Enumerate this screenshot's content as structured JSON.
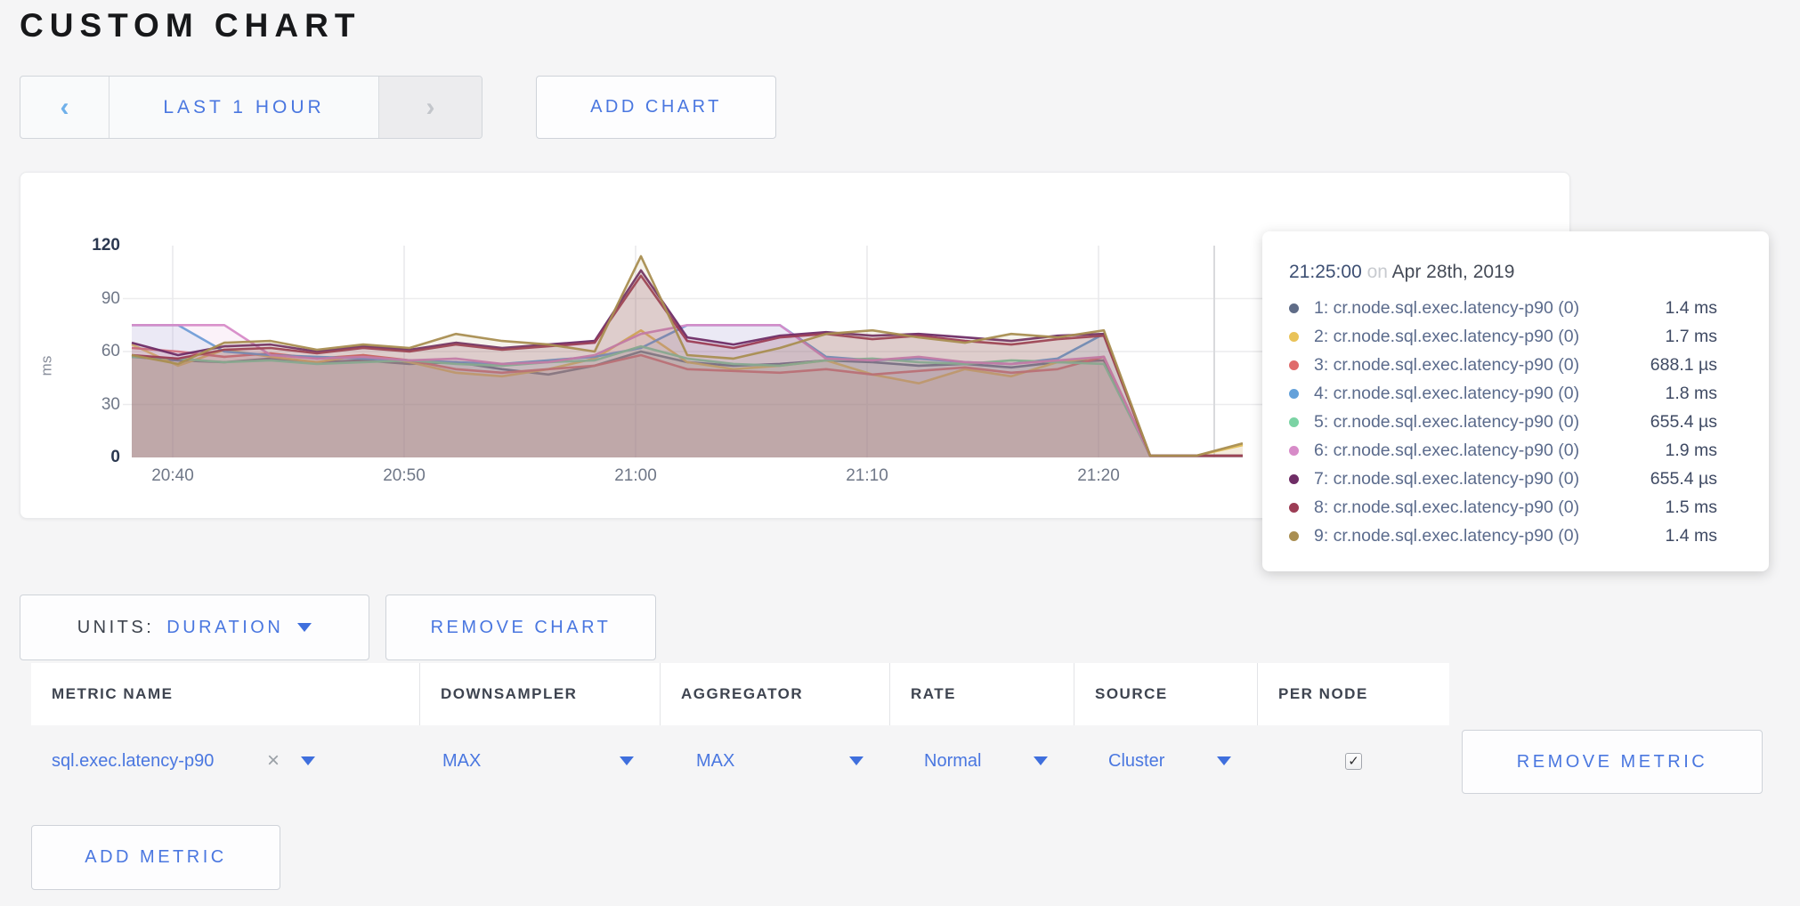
{
  "title": "CUSTOM CHART",
  "colors": {
    "accent": "#4a77e0",
    "page_bg": "#f5f5f6"
  },
  "time_nav": {
    "prev": "‹",
    "label": "LAST 1 HOUR",
    "next": "›"
  },
  "buttons": {
    "add_chart": "ADD CHART",
    "remove_chart": "REMOVE CHART",
    "add_metric": "ADD METRIC",
    "remove_metric": "REMOVE METRIC"
  },
  "units_control": {
    "label": "UNITS:",
    "value": "DURATION"
  },
  "chart_data": {
    "type": "area",
    "title": "",
    "xlabel": "",
    "ylabel": "ms",
    "ylim": [
      0,
      120
    ],
    "yticks": [
      0,
      30,
      60,
      90,
      120
    ],
    "xticks": [
      "20:40",
      "20:50",
      "21:00",
      "21:10",
      "21:20"
    ],
    "grid": true,
    "legend_position": "tooltip",
    "hover_guideline_time": "21:25",
    "x": [
      "20:38",
      "20:40",
      "20:42",
      "20:44",
      "20:46",
      "20:48",
      "20:50",
      "20:52",
      "20:54",
      "20:56",
      "20:58",
      "21:00",
      "21:02",
      "21:04",
      "21:06",
      "21:08",
      "21:10",
      "21:12",
      "21:14",
      "21:16",
      "21:18",
      "21:20",
      "21:22",
      "21:24",
      "21:26"
    ],
    "series": [
      {
        "name": "1: cr.node.sql.exec.latency-p90 (0)",
        "color": "#5F6C87",
        "values": [
          57,
          55,
          54,
          56,
          54,
          55,
          53,
          54,
          50,
          47,
          52,
          60,
          54,
          52,
          53,
          55,
          54,
          52,
          53,
          51,
          54,
          55,
          1,
          1,
          1
        ]
      },
      {
        "name": "2: cr.node.sql.exec.latency-p90 (0)",
        "color": "#E9C359",
        "values": [
          64,
          52,
          61,
          57,
          54,
          58,
          54,
          48,
          46,
          50,
          56,
          72,
          54,
          50,
          52,
          55,
          47,
          42,
          50,
          46,
          54,
          57,
          1,
          1,
          7
        ]
      },
      {
        "name": "3: cr.node.sql.exec.latency-p90 (0)",
        "color": "#E06C6C",
        "values": [
          62,
          60,
          57,
          59,
          56,
          58,
          55,
          50,
          48,
          50,
          52,
          58,
          50,
          49,
          48,
          50,
          47,
          49,
          51,
          48,
          50,
          57,
          1,
          1,
          1
        ]
      },
      {
        "name": "4: cr.node.sql.exec.latency-p90 (0)",
        "color": "#64A1DA",
        "values": [
          75,
          75,
          60,
          58,
          57,
          56,
          55,
          54,
          53,
          55,
          57,
          62,
          75,
          75,
          75,
          57,
          55,
          56,
          54,
          53,
          56,
          70,
          1,
          1,
          1
        ]
      },
      {
        "name": "5: cr.node.sql.exec.latency-p90 (0)",
        "color": "#7BD3A4",
        "values": [
          57,
          56,
          54,
          55,
          53,
          54,
          55,
          53,
          52,
          54,
          55,
          63,
          56,
          53,
          52,
          55,
          56,
          54,
          53,
          55,
          54,
          53,
          1,
          1,
          1
        ]
      },
      {
        "name": "6: cr.node.sql.exec.latency-p90 (0)",
        "color": "#D78BC8",
        "values": [
          75,
          75,
          75,
          58,
          56,
          57,
          55,
          56,
          53,
          54,
          58,
          70,
          75,
          75,
          75,
          56,
          55,
          57,
          54,
          53,
          55,
          57,
          1,
          1,
          1
        ]
      },
      {
        "name": "7: cr.node.sql.exec.latency-p90 (0)",
        "color": "#6F2D66",
        "values": [
          65,
          58,
          63,
          64,
          60,
          63,
          61,
          65,
          62,
          64,
          66,
          106,
          68,
          64,
          69,
          71,
          69,
          70,
          68,
          66,
          69,
          70,
          1,
          1,
          1
        ]
      },
      {
        "name": "8: cr.node.sql.exec.latency-p90 (0)",
        "color": "#9C3D55",
        "values": [
          58,
          56,
          61,
          62,
          59,
          62,
          60,
          64,
          61,
          63,
          65,
          103,
          66,
          62,
          68,
          70,
          67,
          69,
          66,
          64,
          67,
          69,
          1,
          1,
          1
        ]
      },
      {
        "name": "9: cr.node.sql.exec.latency-p90 (0)",
        "color": "#A98E51",
        "values": [
          58,
          53,
          65,
          66,
          61,
          64,
          62,
          70,
          66,
          64,
          60,
          114,
          58,
          56,
          62,
          70,
          72,
          68,
          65,
          70,
          68,
          72,
          1,
          1,
          8
        ]
      }
    ]
  },
  "tooltip": {
    "time": "21:25:00",
    "connector": "on",
    "date": "Apr 28th, 2019",
    "rows": [
      {
        "label": "1: cr.node.sql.exec.latency-p90 (0)",
        "value": "1.4 ms",
        "color": "#5F6C87"
      },
      {
        "label": "2: cr.node.sql.exec.latency-p90 (0)",
        "value": "1.7 ms",
        "color": "#E9C359"
      },
      {
        "label": "3: cr.node.sql.exec.latency-p90 (0)",
        "value": "688.1 µs",
        "color": "#E06C6C"
      },
      {
        "label": "4: cr.node.sql.exec.latency-p90 (0)",
        "value": "1.8 ms",
        "color": "#64A1DA"
      },
      {
        "label": "5: cr.node.sql.exec.latency-p90 (0)",
        "value": "655.4 µs",
        "color": "#7BD3A4"
      },
      {
        "label": "6: cr.node.sql.exec.latency-p90 (0)",
        "value": "1.9 ms",
        "color": "#D78BC8"
      },
      {
        "label": "7: cr.node.sql.exec.latency-p90 (0)",
        "value": "655.4 µs",
        "color": "#6F2D66"
      },
      {
        "label": "8: cr.node.sql.exec.latency-p90 (0)",
        "value": "1.5 ms",
        "color": "#9C3D55"
      },
      {
        "label": "9: cr.node.sql.exec.latency-p90 (0)",
        "value": "1.4 ms",
        "color": "#A98E51"
      }
    ]
  },
  "metrics_table": {
    "headers": [
      "METRIC NAME",
      "DOWNSAMPLER",
      "AGGREGATOR",
      "RATE",
      "SOURCE",
      "PER NODE"
    ],
    "rows": [
      {
        "metric_name": "sql.exec.latency-p90",
        "remove_glyph": "×",
        "downsampler": "MAX",
        "aggregator": "MAX",
        "rate": "Normal",
        "source": "Cluster",
        "per_node": true,
        "check_glyph": "✓"
      }
    ]
  }
}
